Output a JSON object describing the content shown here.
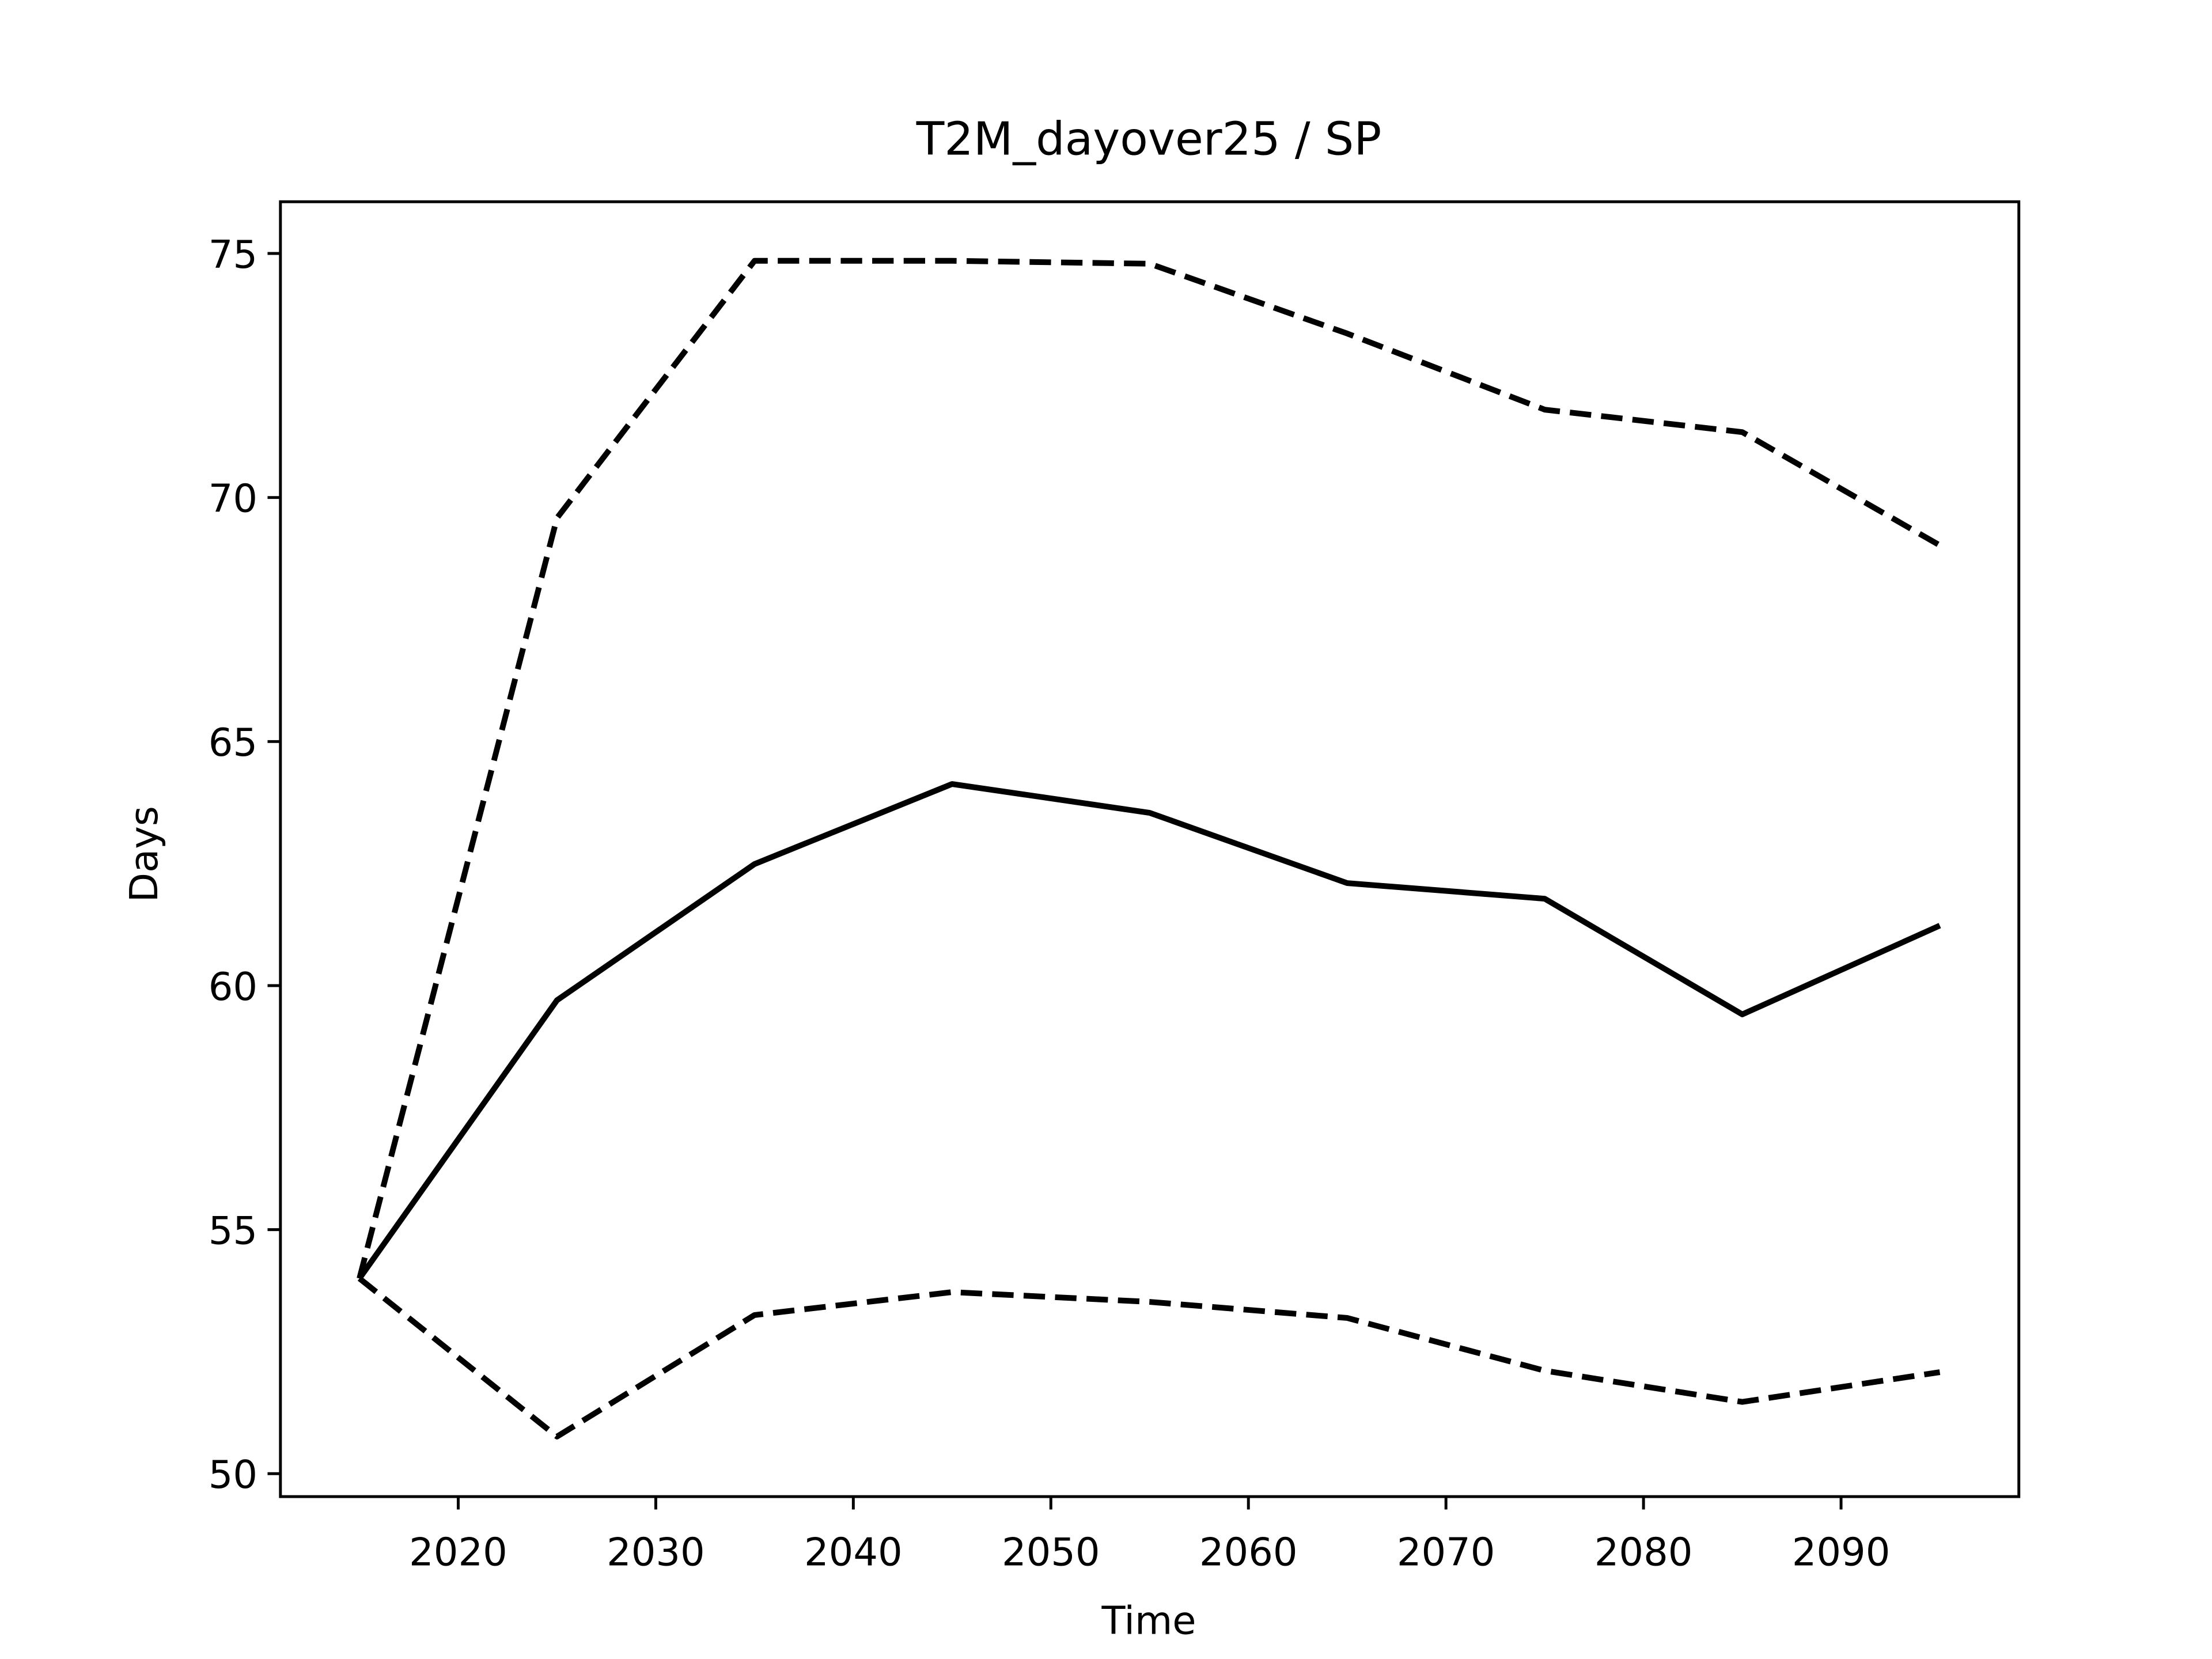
{
  "chart_data": {
    "type": "line",
    "title": "T2M_dayover25 / SP",
    "xlabel": "Time",
    "ylabel": "Days",
    "x": [
      2015,
      2025,
      2035,
      2045,
      2055,
      2065,
      2075,
      2085,
      2095
    ],
    "series": [
      {
        "color": "#000000",
        "dash": "solid",
        "values": [
          54.0,
          59.7,
          62.49,
          64.13,
          63.54,
          62.1,
          61.78,
          59.41,
          61.23
        ]
      },
      {
        "color": "#000000",
        "dash": "dashed",
        "values": [
          54.0,
          69.58,
          74.85,
          74.85,
          74.79,
          73.36,
          71.8,
          71.34,
          69.02
        ]
      },
      {
        "color": "#000000",
        "dash": "dashed",
        "values": [
          54.0,
          50.76,
          53.25,
          53.72,
          53.52,
          53.19,
          52.11,
          51.47,
          52.08
        ]
      }
    ],
    "xlim": [
      2011,
      2099
    ],
    "ylim": [
      49.53,
      76.06
    ],
    "xticks": [
      2020,
      2030,
      2040,
      2050,
      2060,
      2070,
      2080,
      2090
    ],
    "yticks": [
      50,
      55,
      60,
      65,
      70,
      75
    ],
    "grid": false
  }
}
